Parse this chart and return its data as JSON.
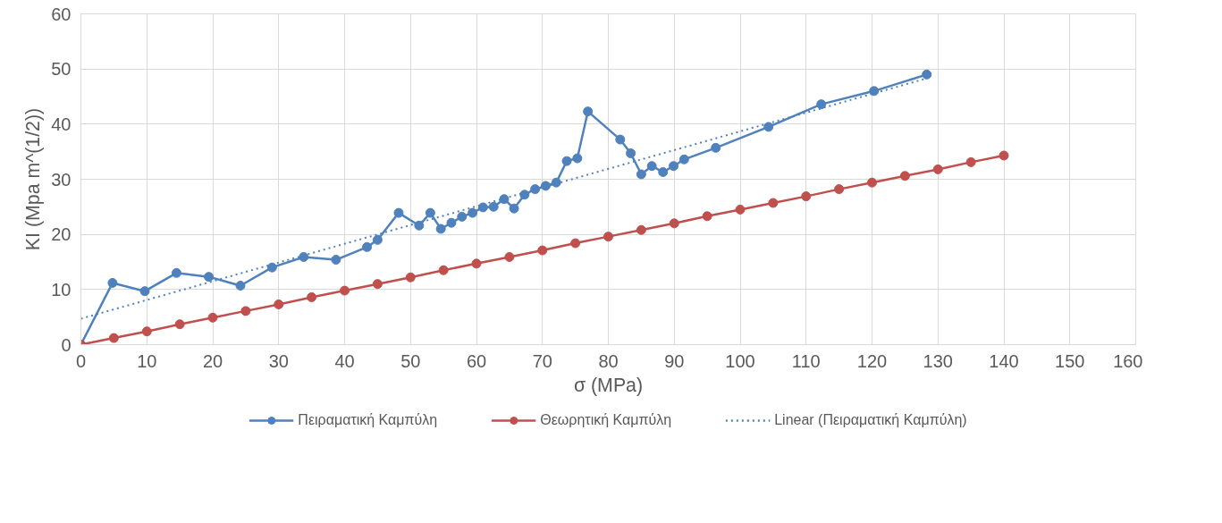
{
  "chart_data": {
    "type": "line",
    "xlabel": "σ (MPa)",
    "ylabel": "KI (Mpa m^(1/2))",
    "xlim": [
      0,
      160
    ],
    "xticks": [
      0,
      10,
      20,
      30,
      40,
      50,
      60,
      70,
      80,
      90,
      100,
      110,
      120,
      130,
      140,
      150,
      160
    ],
    "ylim": [
      0,
      60
    ],
    "yticks": [
      0,
      10,
      20,
      30,
      40,
      50,
      60
    ],
    "grid": true,
    "legend": "bottom",
    "marker": "circle",
    "series": [
      {
        "name": "Πειραματική Καμπύλη",
        "color": "#4f81bd",
        "x": [
          0,
          4.8,
          9.7,
          14.5,
          19.4,
          24.2,
          29,
          33.8,
          38.7,
          43.4,
          45,
          48.2,
          51.3,
          53,
          54.6,
          56.2,
          57.8,
          59.4,
          61,
          62.6,
          64.2,
          65.7,
          67.3,
          68.9,
          70.5,
          72.1,
          73.7,
          75.3,
          76.9,
          81.8,
          83.4,
          85,
          86.6,
          88.3,
          89.9,
          91.5,
          96.3,
          104.3,
          112.3,
          120.3,
          128.3
        ],
        "values": [
          0,
          11.2,
          9.7,
          13,
          12.3,
          10.7,
          14,
          15.9,
          15.4,
          17.7,
          19,
          23.9,
          21.6,
          23.9,
          21,
          22.1,
          23.2,
          23.9,
          24.9,
          25,
          26.4,
          24.7,
          27.2,
          28.2,
          28.8,
          29.4,
          33.3,
          33.8,
          42.3,
          37.2,
          34.7,
          30.9,
          32.4,
          31.3,
          32.4,
          33.6,
          35.7,
          39.5,
          43.6,
          46,
          49
        ]
      },
      {
        "name": "Θεωρητική Καμπύλη",
        "color": "#c0504d",
        "x": [
          0,
          5,
          10,
          15,
          20,
          25,
          30,
          35,
          40,
          45,
          50,
          55,
          60,
          65,
          70,
          75,
          80,
          85,
          90,
          95,
          100,
          105,
          110,
          115,
          120,
          125,
          130,
          135,
          140
        ],
        "values": [
          0,
          1.2,
          2.4,
          3.7,
          4.9,
          6.1,
          7.3,
          8.6,
          9.8,
          11,
          12.2,
          13.5,
          14.7,
          15.9,
          17.1,
          18.4,
          19.6,
          20.8,
          22,
          23.3,
          24.5,
          25.7,
          26.9,
          28.2,
          29.4,
          30.6,
          31.8,
          33.1,
          34.3
        ]
      },
      {
        "name": "Linear (Πειραματική Καμπύλη)",
        "color": "#4f81bd",
        "x": [
          0,
          128.3
        ],
        "values": [
          4.7,
          48.3
        ],
        "marker": "none",
        "line_style": "dotted"
      }
    ]
  }
}
